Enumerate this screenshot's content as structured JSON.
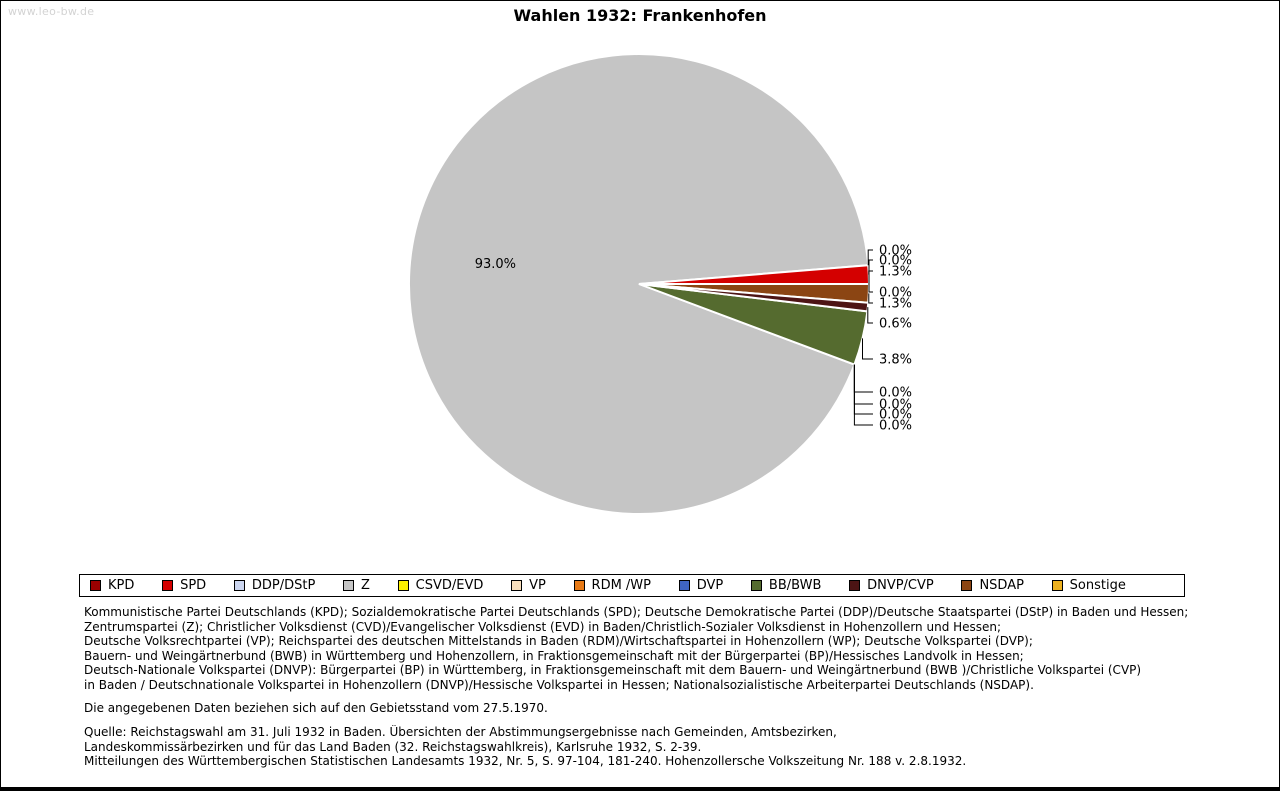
{
  "watermark": "www.leo-bw.de",
  "title": "Wahlen 1932: Frankenhofen",
  "chart_data": {
    "type": "pie",
    "title": "Wahlen 1932: Frankenhofen",
    "unit": "%",
    "start_angle_deg": 0,
    "direction": "counterclockwise",
    "legend_position": "bottom",
    "series": [
      {
        "party": "KPD",
        "percent": 0.0,
        "color": "#9b0000"
      },
      {
        "party": "SPD",
        "percent": 1.3,
        "color": "#d40000"
      },
      {
        "party": "DDP/DStP",
        "percent": 0.0,
        "color": "#ccd6f0"
      },
      {
        "party": "Z",
        "percent": 93.0,
        "color": "#c5c5c5"
      },
      {
        "party": "CSVD/EVD",
        "percent": 0.0,
        "color": "#fdf000"
      },
      {
        "party": "VP",
        "percent": 0.0,
        "color": "#f8debc"
      },
      {
        "party": "RDM /WP",
        "percent": 0.0,
        "color": "#e87a16"
      },
      {
        "party": "DVP",
        "percent": 0.0,
        "color": "#3f64c2"
      },
      {
        "party": "BB/BWB",
        "percent": 3.8,
        "color": "#556b2f"
      },
      {
        "party": "DNVP/CVP",
        "percent": 0.6,
        "color": "#4d1414"
      },
      {
        "party": "NSDAP",
        "percent": 1.3,
        "color": "#8b4513"
      },
      {
        "party": "Sonstige",
        "percent": 0.0,
        "color": "#edb120"
      }
    ]
  },
  "notes": {
    "party_explanations": "Kommunistische Partei Deutschlands (KPD); Sozialdemokratische Partei Deutschlands (SPD); Deutsche Demokratische Partei (DDP)/Deutsche Staatspartei (DStP) in Baden und Hessen;\nZentrumspartei (Z); Christlicher Volksdienst (CVD)/Evangelischer Volksdienst (EVD) in Baden/Christlich-Sozialer Volksdienst in Hohenzollern und Hessen;\nDeutsche Volksrechtpartei (VP); Reichspartei des deutschen Mittelstands in Baden (RDM)/Wirtschaftspartei in Hohenzollern (WP); Deutsche Volkspartei (DVP);\nBauern- und Weingärtnerbund (BWB) in Württemberg und Hohenzollern, in Fraktionsgemeinschaft mit der Bürgerpartei (BP)/Hessisches Landvolk in Hessen;\nDeutsch-Nationale Volkspartei (DNVP): Bürgerpartei (BP) in Württemberg, in Fraktionsgemeinschaft mit dem Bauern- und Weingärtnerbund (BWB )/Christliche Volkspartei (CVP)\nin Baden / Deutschnationale Volkspartei in Hohenzollern (DNVP)/Hessische Volkspartei in Hessen; Nationalsozialistische Arbeiterpartei Deutschlands (NSDAP).",
    "territorial": "Die angegebenen Daten beziehen sich auf den Gebietsstand vom 27.5.1970."
  },
  "source": {
    "text": "Quelle: Reichstagswahl am 31. Juli 1932 in Baden. Übersichten der Abstimmungsergebnisse nach Gemeinden, Amtsbezirken,\nLandeskommissärbezirken und für das Land Baden (32. Reichstagswahlkreis), Karlsruhe 1932, S. 2-39.\nMitteilungen des Württembergischen Statistischen Landesamts 1932, Nr. 5, S. 97-104, 181-240. Hohenzollersche Volkszeitung Nr. 188 v. 2.8.1932."
  }
}
